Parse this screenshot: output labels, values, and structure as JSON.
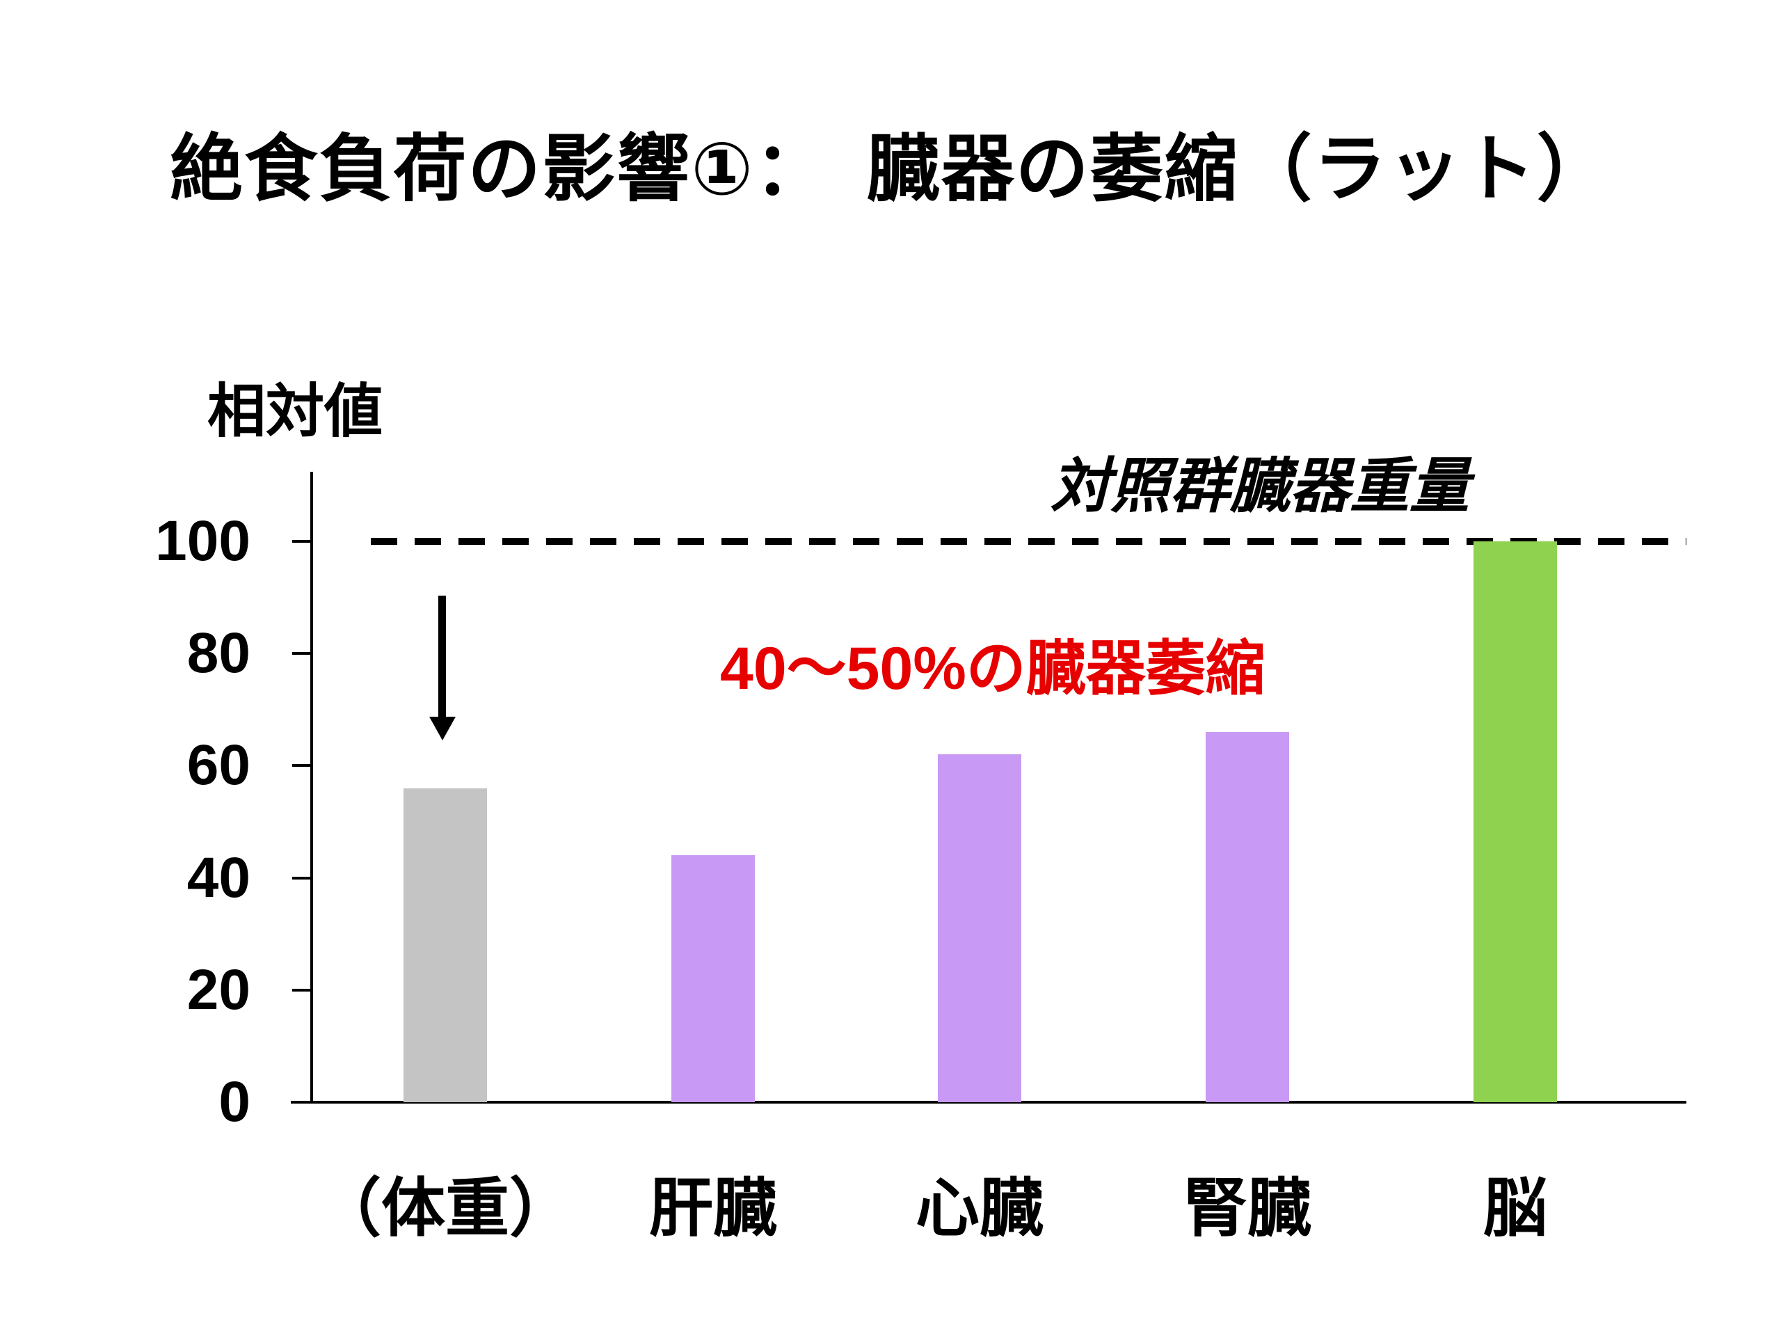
{
  "slide": {
    "title": "絶食負荷の影響①：　臓器の萎縮（ラット）",
    "background": "#FFFFFF"
  },
  "chart_data": {
    "type": "bar",
    "title": "絶食負荷の影響①：　臓器の萎縮（ラット）",
    "ylabel": "相対値",
    "xlabel": "",
    "categories": [
      "（体重）",
      "肝臓",
      "心臓",
      "腎臓",
      "脳"
    ],
    "keys": [
      "body-weight",
      "liver",
      "heart",
      "kidney",
      "brain"
    ],
    "values": [
      56,
      44,
      62,
      66,
      100
    ],
    "bar_colors": [
      "#C4C4C4",
      "#C99AF5",
      "#C99AF5",
      "#C99AF5",
      "#8FD250"
    ],
    "yticks": [
      0,
      20,
      40,
      60,
      80,
      100
    ],
    "ylim": [
      0,
      112
    ],
    "grid": false,
    "legend": false,
    "reference_line": {
      "value": 100,
      "style": "dashed",
      "color": "#000000",
      "label": "対照群臓器重量"
    },
    "shrink_note": {
      "text": "40～50%の臓器萎縮",
      "color": "#E60000"
    },
    "down_arrow": {
      "over_category": "（体重）",
      "color": "#000000"
    }
  }
}
